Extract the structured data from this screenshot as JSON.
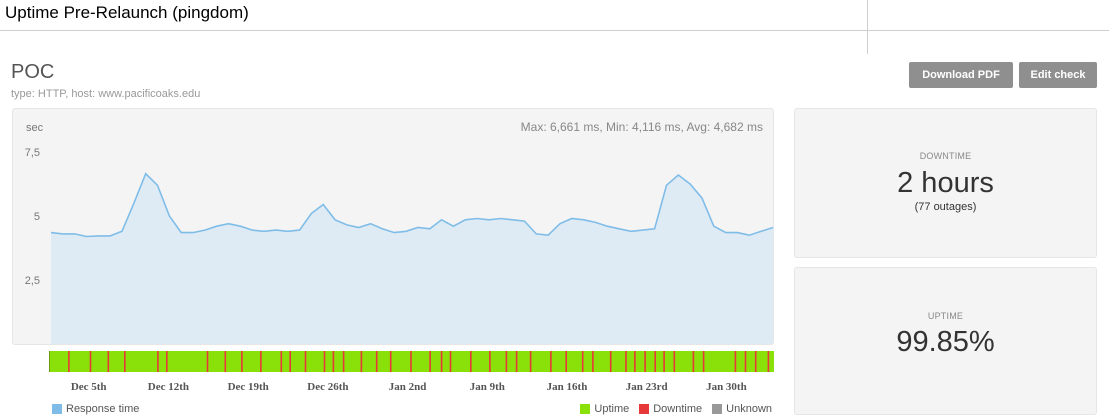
{
  "document": {
    "title": "Uptime Pre-Relaunch (pingdom)"
  },
  "check": {
    "name": "POC",
    "meta": "type: HTTP, host: www.pacificoaks.edu"
  },
  "actions": {
    "download_pdf": "Download PDF",
    "edit_check": "Edit check"
  },
  "stats_text": "Max: 6,661 ms, Min: 4,116 ms, Avg: 4,682 ms",
  "downtime": {
    "label": "DOWNTIME",
    "value": "2 hours",
    "sub": "(77 outages)"
  },
  "uptime": {
    "label": "UPTIME",
    "value": "99.85%"
  },
  "legend": {
    "response_time": "Response time",
    "uptime": "Uptime",
    "downtime": "Downtime",
    "unknown": "Unknown"
  },
  "colors": {
    "uptime": "#8ae10a",
    "downtime": "#e8393a",
    "unknown": "#999999",
    "response": "#7fbde8",
    "response_fill": "#deebf5"
  },
  "timeline": {
    "start_day": 0,
    "end_day": 57,
    "outage_days": [
      1.5,
      3.2,
      4.6,
      5.9,
      8.5,
      9.2,
      12.4,
      13.8,
      15.1,
      16.6,
      18.2,
      18.9,
      20.1,
      21.6,
      22.3,
      23.1,
      24.5,
      25.7,
      26.8,
      28.4,
      29.9,
      30.8,
      31.5,
      33.1,
      34.6,
      35.9,
      36.7,
      37.8,
      39.4,
      40.6,
      41.9,
      42.7,
      44.1,
      45.3,
      46.0,
      46.8,
      47.6,
      48.3,
      49.1,
      50.6,
      51.4,
      53.9,
      54.7,
      55.5,
      56.5
    ]
  },
  "chart_data": {
    "type": "area",
    "ylabel": "sec",
    "ylim": [
      0,
      9.1
    ],
    "y_ticks": [
      {
        "value": 2.5,
        "label": "2,5"
      },
      {
        "value": 5,
        "label": "5"
      },
      {
        "value": 7.5,
        "label": "7,5"
      }
    ],
    "x_ticks": [
      {
        "day": 3.4,
        "label": "Dec 5th"
      },
      {
        "day": 10.4,
        "label": "Dec 12th"
      },
      {
        "day": 17.4,
        "label": "Dec 19th"
      },
      {
        "day": 24.4,
        "label": "Dec 26th"
      },
      {
        "day": 31.4,
        "label": "Jan 2nd"
      },
      {
        "day": 38.4,
        "label": "Jan 9th"
      },
      {
        "day": 45.4,
        "label": "Jan 16th"
      },
      {
        "day": 52.4,
        "label": "Jan 23rd"
      },
      {
        "day": 59.4,
        "label": "Jan 30th"
      }
    ],
    "x_range": [
      0,
      63.4
    ],
    "series": [
      {
        "values": [
          4.35,
          4.3,
          4.3,
          4.2,
          4.22,
          4.22,
          4.4,
          5.5,
          6.65,
          6.2,
          5.0,
          4.35,
          4.35,
          4.45,
          4.6,
          4.7,
          4.6,
          4.45,
          4.4,
          4.45,
          4.4,
          4.45,
          5.1,
          5.45,
          4.85,
          4.65,
          4.55,
          4.7,
          4.5,
          4.35,
          4.4,
          4.55,
          4.5,
          4.85,
          4.6,
          4.85,
          4.9,
          4.85,
          4.9,
          4.85,
          4.8,
          4.3,
          4.25,
          4.7,
          4.9,
          4.85,
          4.75,
          4.6,
          4.5,
          4.4,
          4.45,
          4.5,
          6.2,
          6.6,
          6.25,
          5.7,
          4.6,
          4.35,
          4.35,
          4.25,
          4.4,
          4.55
        ]
      }
    ]
  }
}
